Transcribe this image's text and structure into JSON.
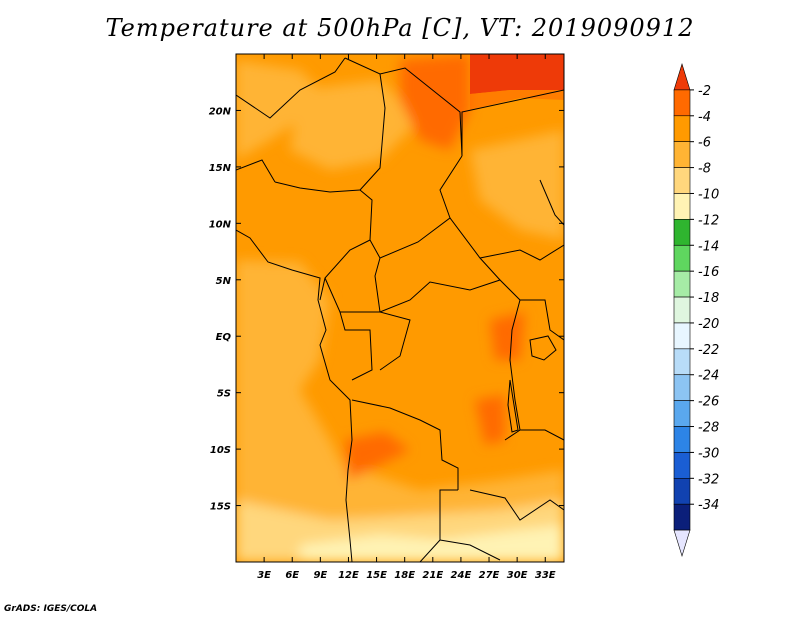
{
  "title": "Temperature at 500hPa [C], VT: 2019090912",
  "credit": "GrADS: IGES/COLA",
  "map": {
    "lon_range": [
      0,
      35
    ],
    "lat_range": [
      -20,
      25
    ],
    "lon_ticks": [
      {
        "value": 3,
        "label": "3E"
      },
      {
        "value": 6,
        "label": "6E"
      },
      {
        "value": 9,
        "label": "9E"
      },
      {
        "value": 12,
        "label": "12E"
      },
      {
        "value": 15,
        "label": "15E"
      },
      {
        "value": 18,
        "label": "18E"
      },
      {
        "value": 21,
        "label": "21E"
      },
      {
        "value": 24,
        "label": "24E"
      },
      {
        "value": 27,
        "label": "27E"
      },
      {
        "value": 30,
        "label": "30E"
      },
      {
        "value": 33,
        "label": "33E"
      }
    ],
    "lat_ticks": [
      {
        "value": 20,
        "label": "20N"
      },
      {
        "value": 15,
        "label": "15N"
      },
      {
        "value": 10,
        "label": "10N"
      },
      {
        "value": 5,
        "label": "5N"
      },
      {
        "value": 0,
        "label": "EQ"
      },
      {
        "value": -5,
        "label": "5S"
      },
      {
        "value": -10,
        "label": "10S"
      },
      {
        "value": -15,
        "label": "15S"
      }
    ]
  },
  "colorbar": {
    "labels": [
      "-2",
      "-4",
      "-6",
      "-8",
      "-10",
      "-12",
      "-14",
      "-16",
      "-18",
      "-20",
      "-22",
      "-24",
      "-26",
      "-28",
      "-30",
      "-32",
      "-34"
    ],
    "colors": [
      "#ee3a08",
      "#ff6a00",
      "#ff9a00",
      "#ffb434",
      "#ffd77d",
      "#fff3b4",
      "#2fb52f",
      "#5fd65f",
      "#a6eca6",
      "#dff6df",
      "#e8f6ff",
      "#b8dcf8",
      "#8cc4f3",
      "#5aa8ee",
      "#2d84e6",
      "#1a5ed4",
      "#1142b0",
      "#0b1f7a",
      "#e6e6ff"
    ]
  },
  "field_colors": {
    "darker": "#ff6a00",
    "mid": "#ff9a00",
    "warm": "#ffb434",
    "cool": "#ffd77d",
    "coolest": "#fff3b4",
    "hot": "#ee3a08"
  }
}
